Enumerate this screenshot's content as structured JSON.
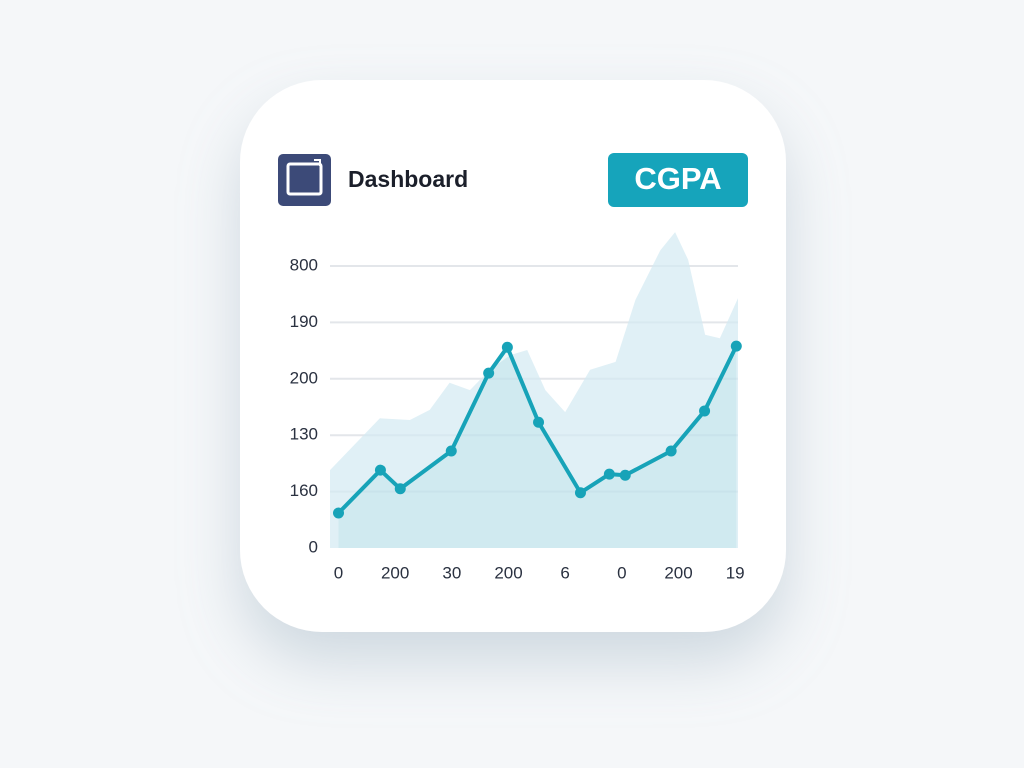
{
  "header": {
    "title": "Dashboard",
    "badge": "CGPA"
  },
  "chart_data": {
    "type": "line",
    "xlim": [
      -0.15,
      7.05
    ],
    "xticks": [
      {
        "value": 0,
        "label": "0"
      },
      {
        "value": 1,
        "label": "200"
      },
      {
        "value": 2,
        "label": "30"
      },
      {
        "value": 3,
        "label": "200"
      },
      {
        "value": 4,
        "label": "6"
      },
      {
        "value": 5,
        "label": "0"
      },
      {
        "value": 6,
        "label": "200"
      },
      {
        "value": 7,
        "label": "19"
      }
    ],
    "ylim": [
      0,
      5
    ],
    "yticks": [
      {
        "value": 0,
        "label": "0"
      },
      {
        "value": 1,
        "label": "160"
      },
      {
        "value": 2,
        "label": "130"
      },
      {
        "value": 3,
        "label": "200"
      },
      {
        "value": 4,
        "label": "190"
      },
      {
        "value": 5,
        "label": "800"
      }
    ],
    "grid": true,
    "series": [
      {
        "type": "area",
        "color": "#d3eaf2",
        "x": [
          -0.15,
          0.73,
          1.26,
          1.61,
          1.96,
          2.32,
          2.67,
          3.03,
          3.33,
          3.65,
          4.0,
          4.44,
          4.89,
          5.24,
          5.68,
          5.94,
          6.17,
          6.47,
          6.73,
          7.05
        ],
        "values": [
          1.38,
          2.3,
          2.27,
          2.45,
          2.93,
          2.8,
          3.16,
          3.42,
          3.51,
          2.8,
          2.41,
          3.16,
          3.3,
          4.4,
          5.28,
          5.6,
          5.11,
          3.78,
          3.72,
          4.43
        ]
      },
      {
        "type": "line",
        "color": "#17a3b8",
        "x": [
          0,
          0.74,
          1.09,
          1.99,
          2.65,
          2.98,
          3.53,
          4.27,
          4.78,
          5.06,
          5.87,
          6.46,
          7.02
        ],
        "values": [
          0.62,
          1.38,
          1.05,
          1.72,
          3.1,
          3.56,
          2.23,
          0.98,
          1.31,
          1.29,
          1.72,
          2.43,
          3.58
        ]
      }
    ]
  }
}
